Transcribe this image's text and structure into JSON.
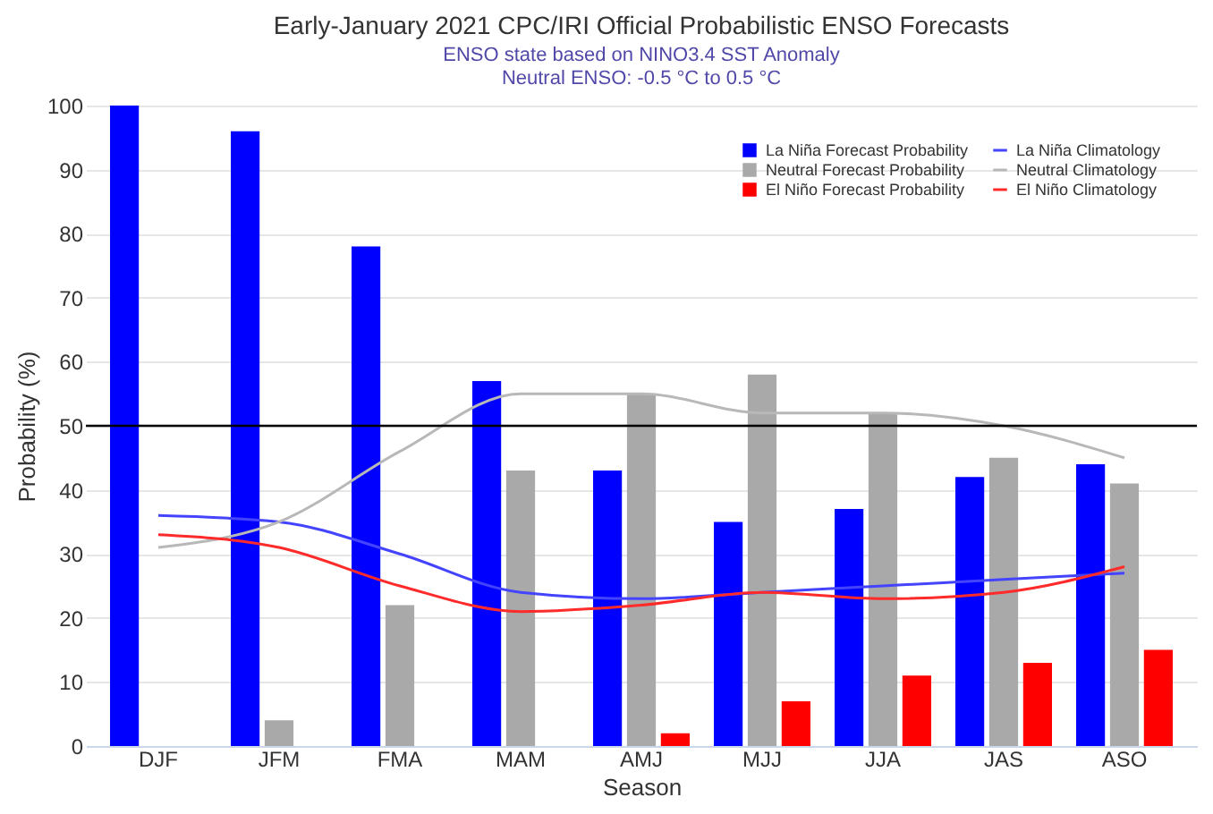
{
  "chart_data": {
    "type": "bar",
    "title": "Early-January 2021 CPC/IRI Official Probabilistic ENSO Forecasts",
    "subtitle": "ENSO state based on NINO3.4 SST Anomaly\nNeutral ENSO: -0.5 °C to 0.5 °C",
    "xlabel": "Season",
    "ylabel": "Probability (%)",
    "categories": [
      "DJF",
      "JFM",
      "FMA",
      "MAM",
      "AMJ",
      "MJJ",
      "JJA",
      "JAS",
      "ASO"
    ],
    "series": [
      {
        "name": "La Niña Forecast Probability",
        "color": "#0000ff",
        "values": [
          100,
          96,
          78,
          57,
          43,
          35,
          37,
          42,
          44
        ]
      },
      {
        "name": "Neutral Forecast Probability",
        "color": "#a9a9a9",
        "values": [
          0,
          4,
          22,
          43,
          55,
          58,
          52,
          45,
          41
        ]
      },
      {
        "name": "El Niño Forecast Probability",
        "color": "#ff0000",
        "values": [
          0,
          0,
          0,
          0,
          2,
          7,
          11,
          13,
          15
        ]
      },
      {
        "name": "La Niña Climatology",
        "type": "line",
        "color": "#4444ff",
        "values": [
          36,
          35,
          30,
          24,
          23,
          24,
          25,
          26,
          27
        ]
      },
      {
        "name": "Neutral Climatology",
        "type": "line",
        "color": "#b8b8b8",
        "values": [
          31,
          35,
          46,
          55,
          55,
          52,
          52,
          50,
          45
        ]
      },
      {
        "name": "El Niño Climatology",
        "type": "line",
        "color": "#ff2a2a",
        "values": [
          33,
          31,
          25,
          21,
          22,
          24,
          23,
          24,
          28
        ]
      }
    ],
    "ylim": [
      0,
      100
    ],
    "yticks": [
      0,
      10,
      20,
      30,
      40,
      50,
      60,
      70,
      80,
      90,
      100
    ],
    "ref_lines": [
      {
        "axis": "y",
        "value": 50,
        "color": "#000000"
      }
    ],
    "grid": "y",
    "legend": "top right"
  }
}
